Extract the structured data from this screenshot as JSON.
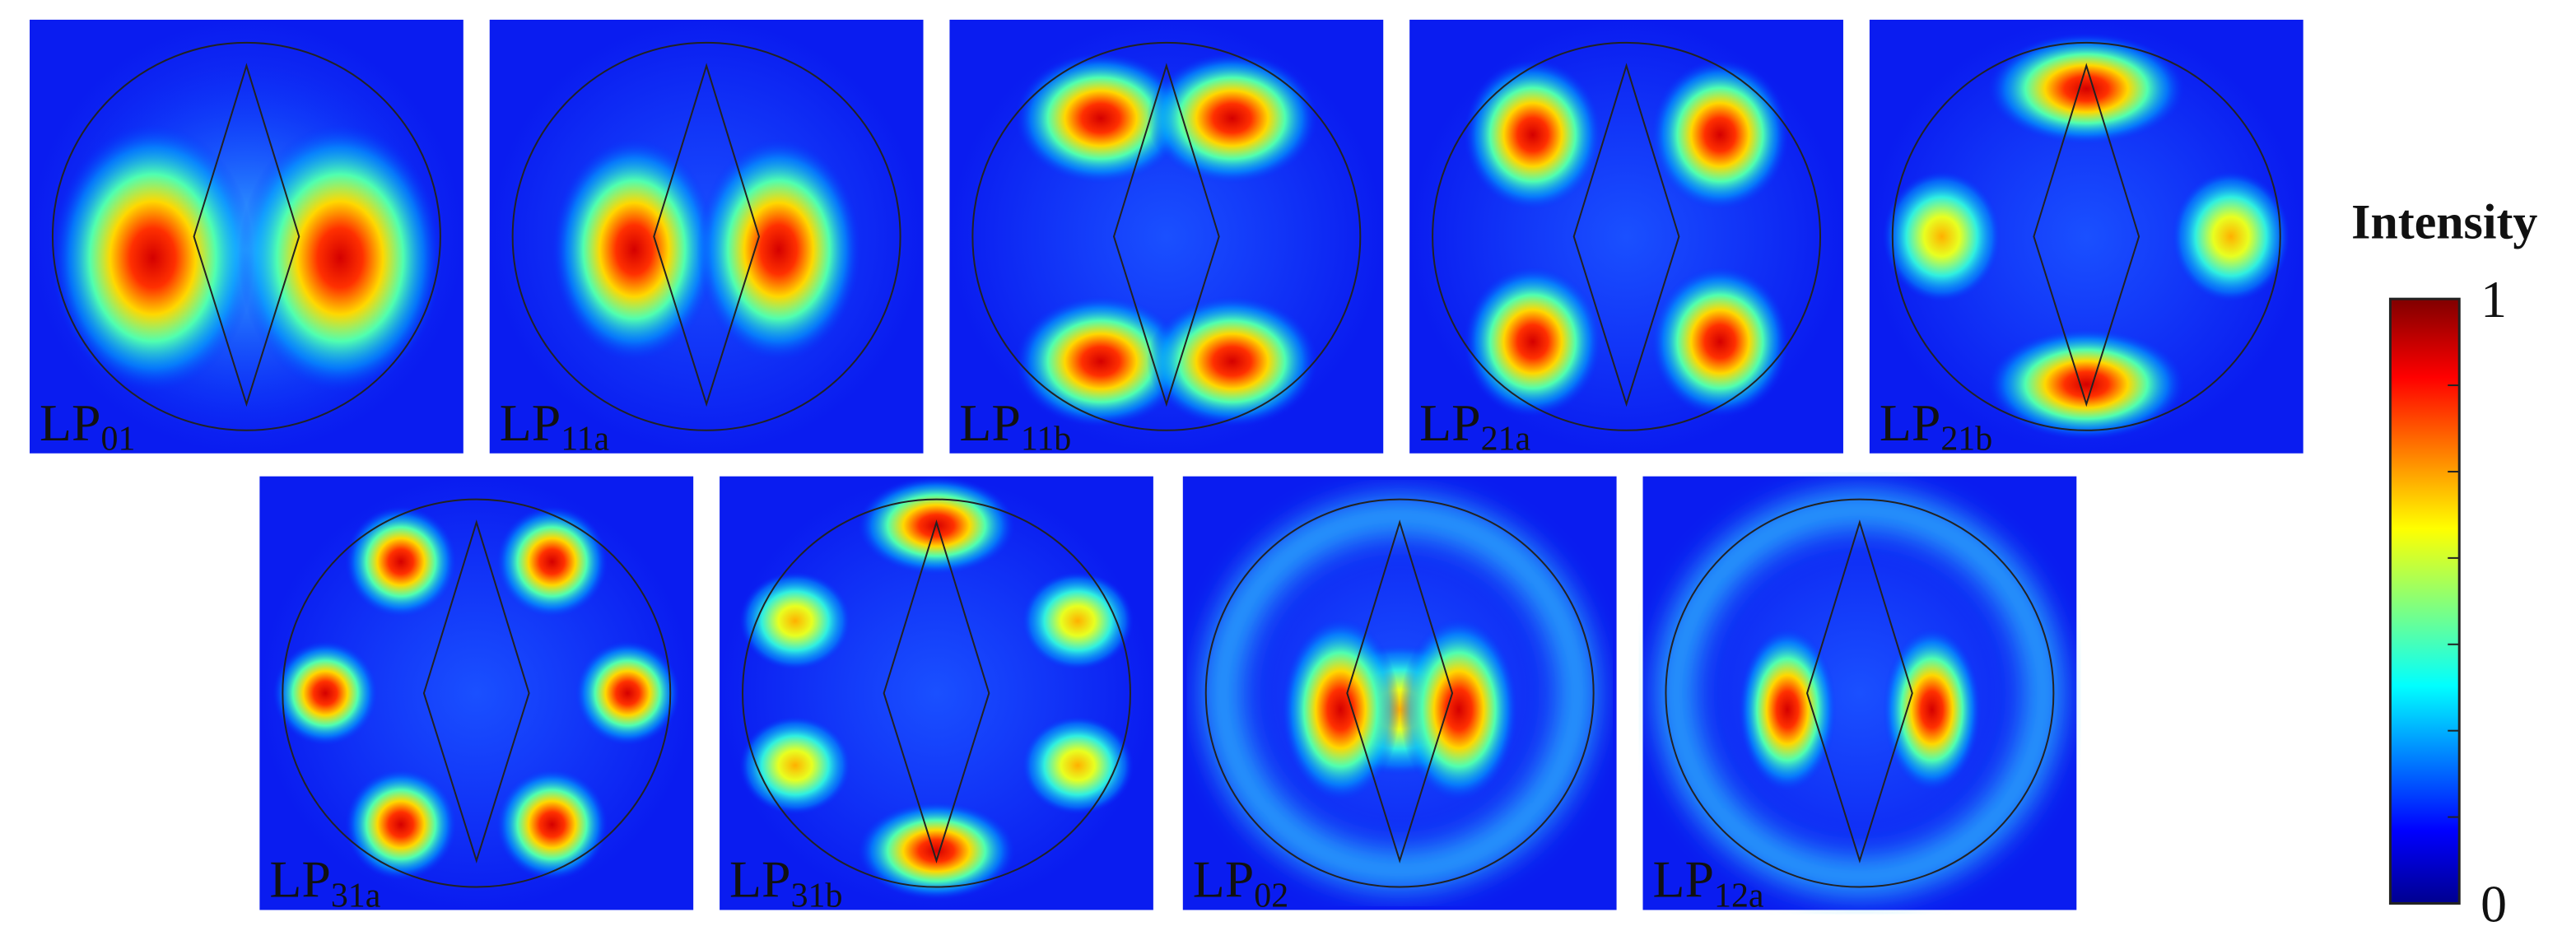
{
  "panels": [
    {
      "base": "LP",
      "sub": "01"
    },
    {
      "base": "LP",
      "sub": "11a"
    },
    {
      "base": "LP",
      "sub": "11b"
    },
    {
      "base": "LP",
      "sub": "21a"
    },
    {
      "base": "LP",
      "sub": "21b"
    },
    {
      "base": "LP",
      "sub": "31a"
    },
    {
      "base": "LP",
      "sub": "31b"
    },
    {
      "base": "LP",
      "sub": "02"
    },
    {
      "base": "LP",
      "sub": "12a"
    }
  ],
  "colorbar": {
    "title": "Intensity",
    "ticks": [
      0,
      1
    ],
    "lim": [
      0,
      1
    ]
  }
}
